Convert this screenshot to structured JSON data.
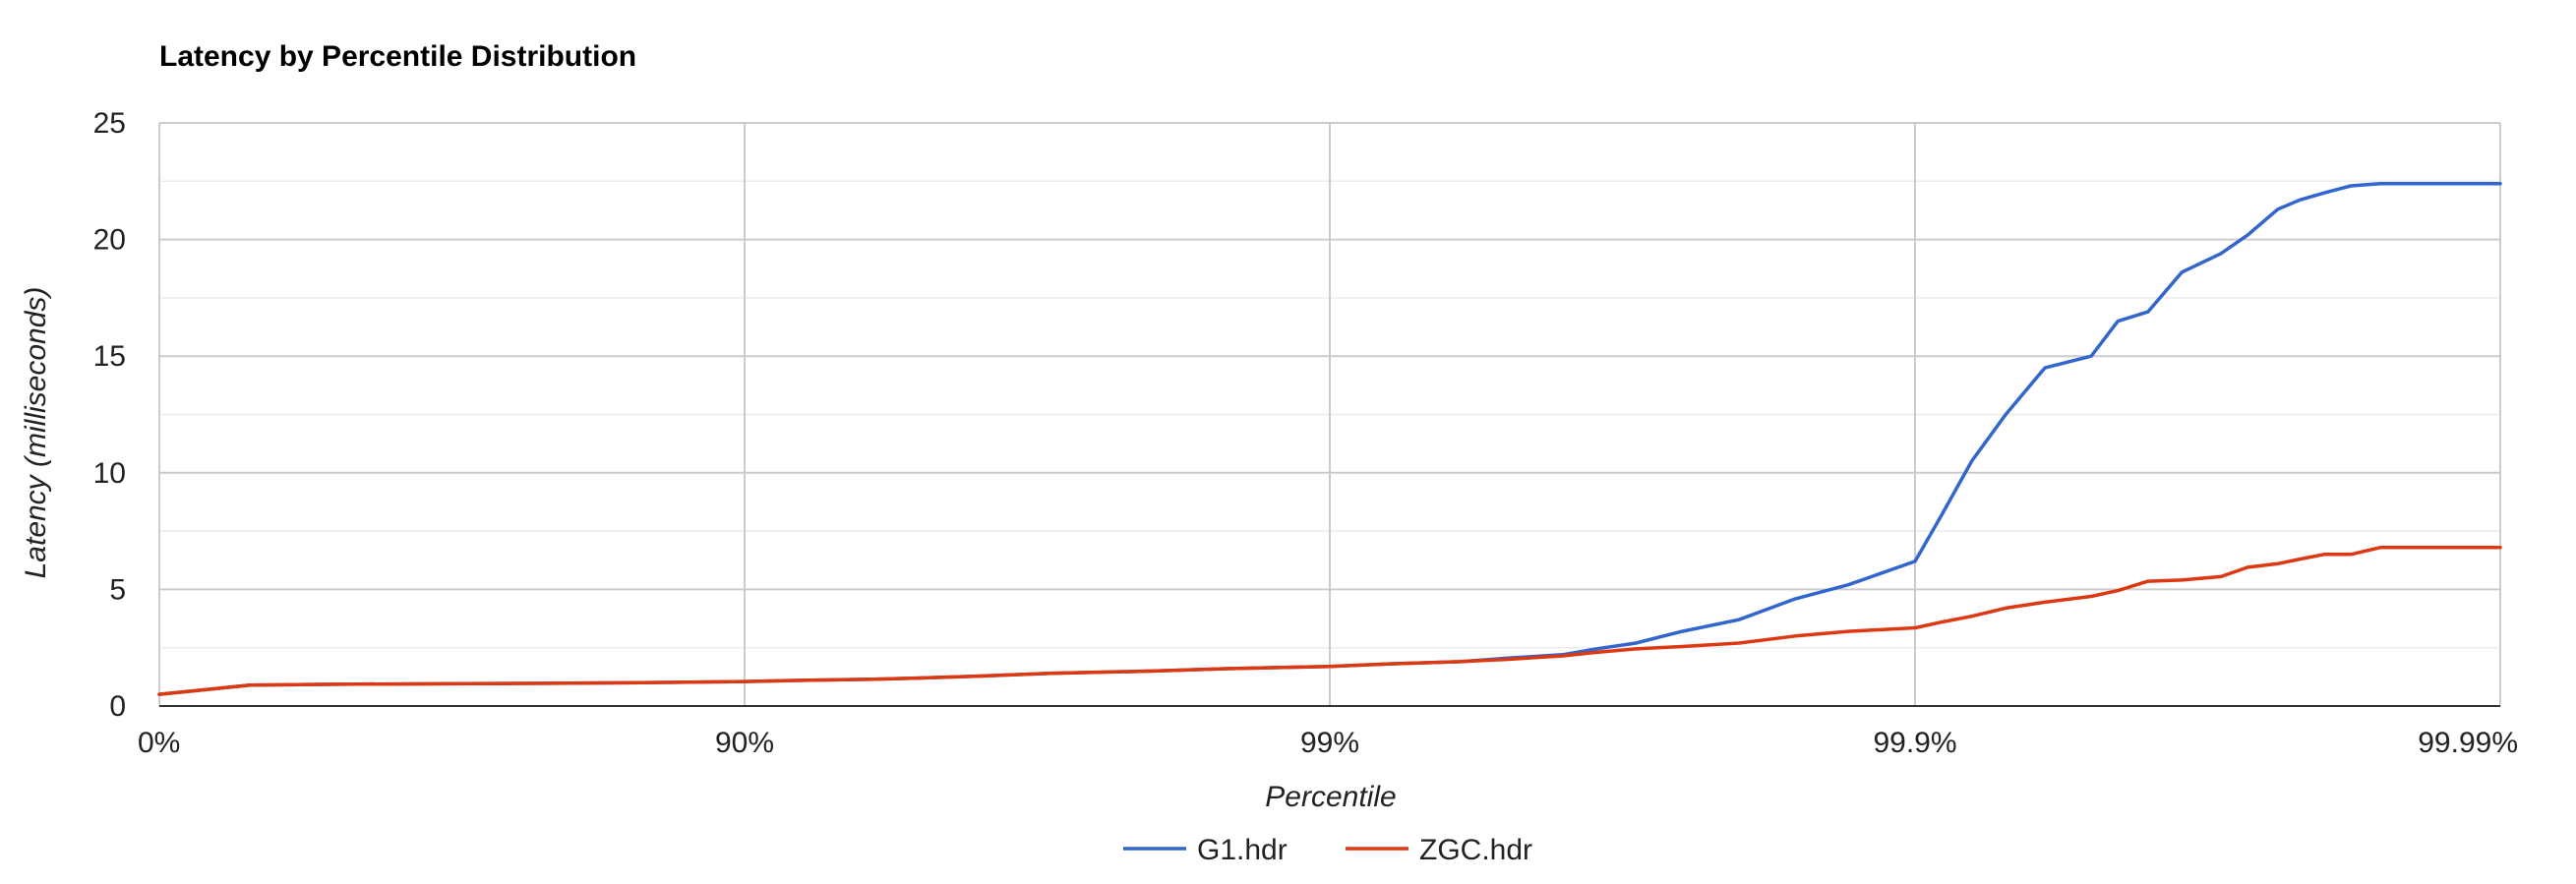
{
  "chart_data": {
    "type": "line",
    "title": "Latency by Percentile Distribution",
    "xlabel": "Percentile",
    "ylabel": "Latency (milliseconds)",
    "x_scale": "log-percentile",
    "x_ticks": [
      "0%",
      "90%",
      "99%",
      "99.9%",
      "99.99%"
    ],
    "x_tick_values": [
      0,
      90,
      99,
      99.9,
      99.99
    ],
    "ylim": [
      0,
      25
    ],
    "y_ticks": [
      0,
      5,
      10,
      15,
      20,
      25
    ],
    "grid": true,
    "legend_position": "bottom",
    "x": [
      0,
      30,
      50,
      70,
      80,
      85,
      90,
      92,
      94,
      95,
      96,
      97,
      98,
      98.5,
      99,
      99.2,
      99.4,
      99.5,
      99.6,
      99.65,
      99.7,
      99.75,
      99.8,
      99.84,
      99.87,
      99.9,
      99.91,
      99.92,
      99.93,
      99.94,
      99.95,
      99.955,
      99.96,
      99.965,
      99.97,
      99.973,
      99.976,
      99.978,
      99.98,
      99.982,
      99.984,
      99.986,
      99.9875,
      99.989,
      99.99
    ],
    "series": [
      {
        "name": "G1.hdr",
        "color": "#3366cc",
        "values": [
          0.5,
          0.9,
          0.93,
          0.96,
          0.98,
          1.0,
          1.05,
          1.1,
          1.15,
          1.2,
          1.28,
          1.4,
          1.5,
          1.6,
          1.7,
          1.8,
          1.9,
          2.05,
          2.2,
          2.45,
          2.7,
          3.2,
          3.7,
          4.6,
          5.2,
          6.2,
          8.2,
          10.5,
          12.5,
          14.5,
          15.0,
          16.5,
          16.9,
          18.6,
          19.4,
          20.2,
          21.3,
          21.7,
          22.0,
          22.3,
          22.4,
          22.4,
          22.4,
          22.4,
          22.4
        ]
      },
      {
        "name": "ZGC.hdr",
        "color": "#dc3912",
        "values": [
          0.5,
          0.9,
          0.93,
          0.96,
          0.98,
          1.0,
          1.05,
          1.1,
          1.15,
          1.2,
          1.28,
          1.4,
          1.5,
          1.6,
          1.7,
          1.8,
          1.9,
          2.0,
          2.15,
          2.3,
          2.45,
          2.55,
          2.7,
          3.0,
          3.2,
          3.35,
          3.6,
          3.85,
          4.2,
          4.45,
          4.7,
          4.95,
          5.35,
          5.4,
          5.55,
          5.95,
          6.1,
          6.3,
          6.5,
          6.5,
          6.8,
          6.8,
          6.8,
          6.8,
          6.8
        ]
      }
    ]
  }
}
